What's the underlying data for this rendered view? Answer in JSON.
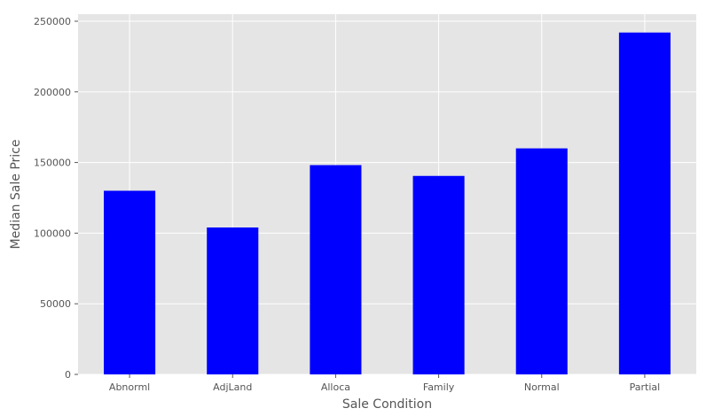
{
  "chart_data": {
    "type": "bar",
    "title": "",
    "xlabel": "Sale Condition",
    "ylabel": "Median Sale Price",
    "categories": [
      "Abnorml",
      "AdjLand",
      "Alloca",
      "Family",
      "Normal",
      "Partial"
    ],
    "values": [
      130000,
      104000,
      148145,
      140500,
      160000,
      242000
    ],
    "ylim": [
      0,
      255000
    ],
    "yticks": [
      0,
      50000,
      100000,
      150000,
      200000,
      250000
    ],
    "ytick_labels": [
      "0",
      "50000",
      "100000",
      "150000",
      "200000",
      "250000"
    ],
    "grid": true,
    "legend": "none",
    "colors": {
      "bar": "#0000ff",
      "plot_background": "#e5e5e5",
      "grid": "#ffffff",
      "text": "#555555"
    }
  }
}
